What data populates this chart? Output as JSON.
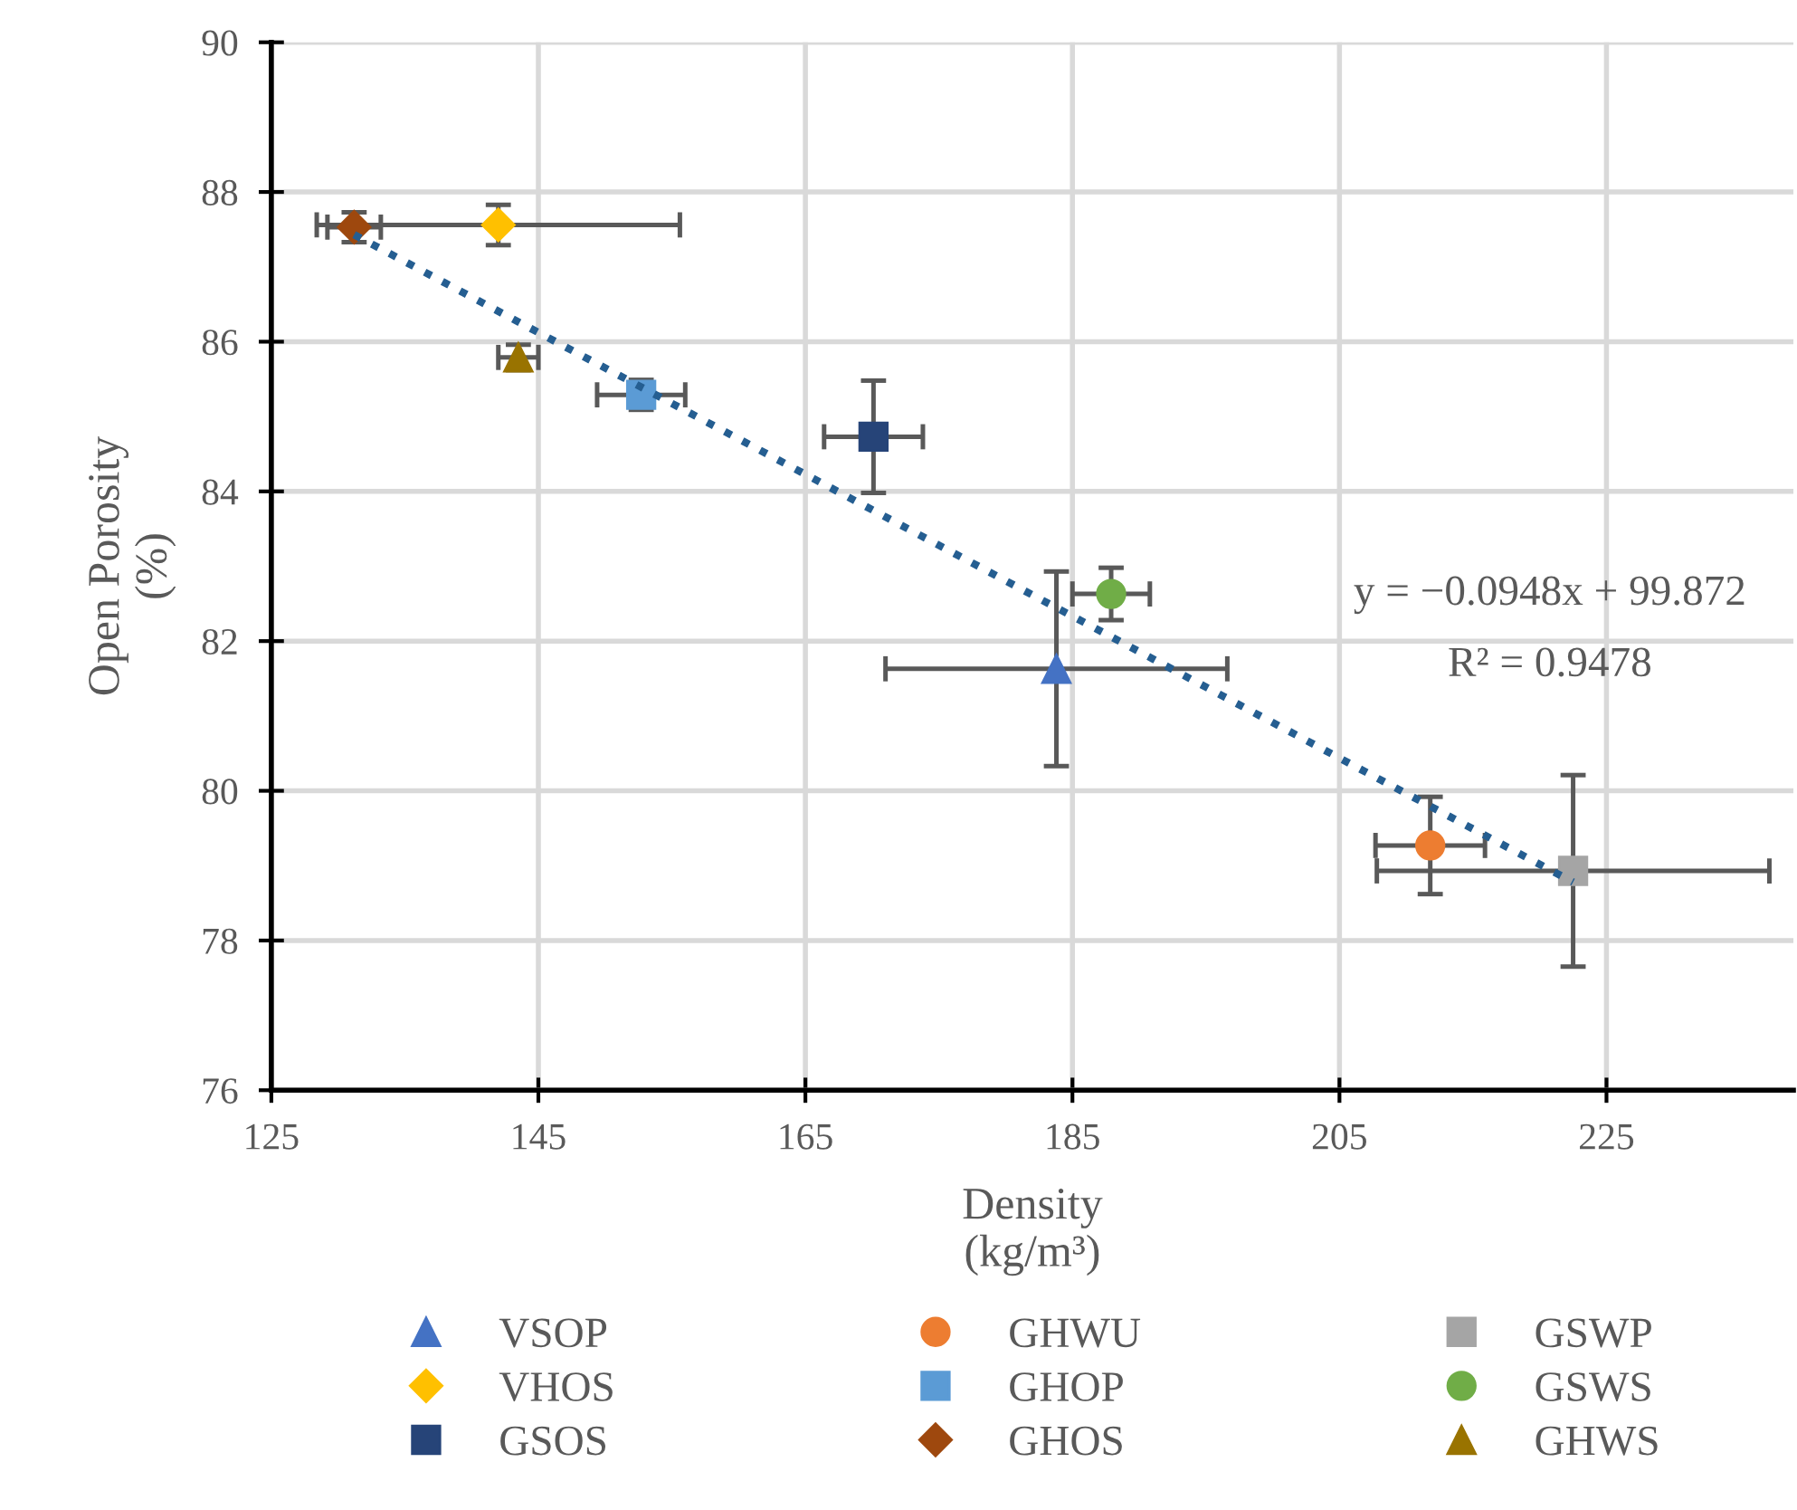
{
  "chart_data": {
    "type": "scatter",
    "xlabel": "Density\n(kg/m³)",
    "ylabel": "Open Porosity\n(%)",
    "xlim": [
      125,
      239
    ],
    "xticks": [
      125,
      145,
      165,
      185,
      205,
      225
    ],
    "ylim": [
      76,
      90
    ],
    "yticks": [
      76,
      78,
      80,
      82,
      84,
      86,
      88,
      90
    ],
    "grid": true,
    "legend": "bottom",
    "annotations": [
      "y = −0.0948x + 99.872",
      "R² = 0.9478"
    ],
    "series": [
      {
        "name": "VSOP",
        "color": "#4472c4",
        "marker": "triangle",
        "x": [
          183.8
        ],
        "values": [
          81.63
        ],
        "errors": [
          1.3
        ],
        "xerrors": [
          12.8
        ]
      },
      {
        "name": "VHOS",
        "color": "#ffc000",
        "marker": "diamond",
        "x": [
          142.0
        ],
        "values": [
          87.56
        ],
        "errors": [
          0.27
        ],
        "xerrors": [
          13.6
        ]
      },
      {
        "name": "GSOS",
        "color": "#264478",
        "marker": "square",
        "x": [
          170.1
        ],
        "values": [
          84.73
        ],
        "errors": [
          0.75
        ],
        "xerrors": [
          3.7
        ]
      },
      {
        "name": "GHWU",
        "color": "#ed7d31",
        "marker": "circle",
        "x": [
          211.8
        ],
        "values": [
          79.27
        ],
        "errors": [
          0.65
        ],
        "xerrors": [
          4.1
        ]
      },
      {
        "name": "GHOP",
        "color": "#5b9bd5",
        "marker": "square",
        "x": [
          152.7
        ],
        "values": [
          85.29
        ],
        "errors": [
          0.2
        ],
        "xerrors": [
          3.3
        ]
      },
      {
        "name": "GHOS",
        "color": "#9e480e",
        "marker": "diamond",
        "x": [
          131.2
        ],
        "values": [
          87.53
        ],
        "errors": [
          0.2
        ],
        "xerrors": [
          2.0
        ]
      },
      {
        "name": "GSWP",
        "color": "#a5a5a5",
        "marker": "square",
        "x": [
          222.5
        ],
        "values": [
          78.93
        ],
        "errors": [
          1.28
        ],
        "xerrors": [
          14.7
        ]
      },
      {
        "name": "GSWS",
        "color": "#70ad47",
        "marker": "circle",
        "x": [
          187.9
        ],
        "values": [
          82.63
        ],
        "errors": [
          0.35
        ],
        "xerrors": [
          2.9
        ]
      },
      {
        "name": "GHWS",
        "color": "#997300",
        "marker": "triangle",
        "x": [
          143.5
        ],
        "values": [
          85.79
        ],
        "errors": [
          0.17
        ],
        "xerrors": [
          1.5
        ]
      },
      {
        "type": "line",
        "color": "#255e91",
        "line_style": "dotted",
        "marker": "none",
        "x": [
          131.2,
          222.5
        ],
        "values": [
          87.43,
          78.78
        ]
      }
    ]
  }
}
